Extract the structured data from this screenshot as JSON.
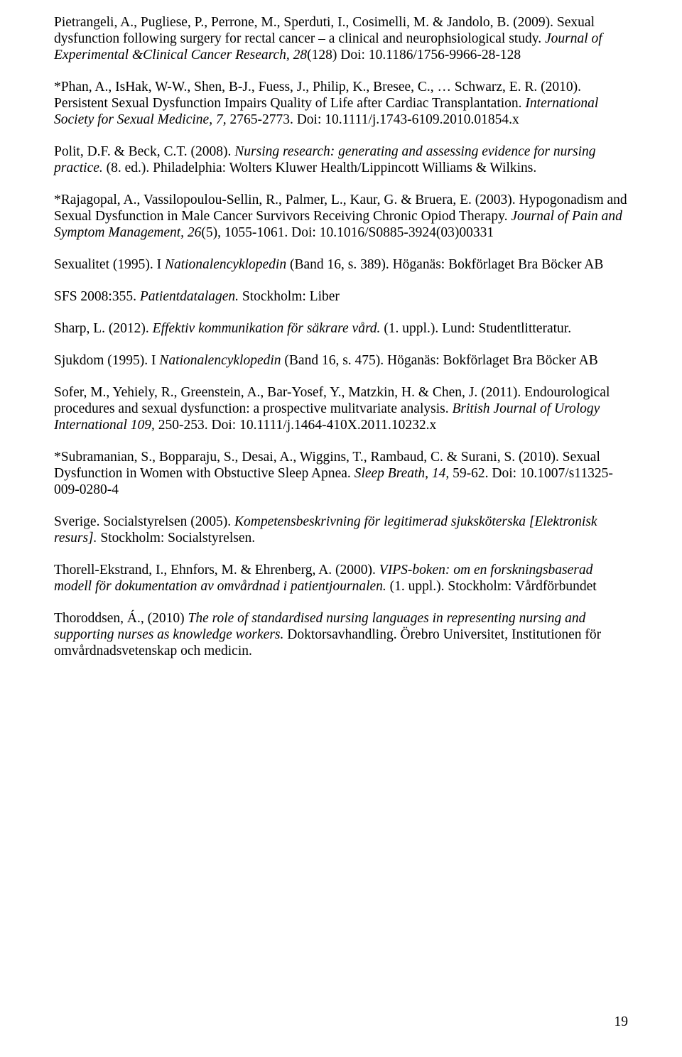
{
  "page_number": "19",
  "refs": [
    {
      "parts": [
        {
          "t": "Pietrangeli, A., Pugliese, P., Perrone, M., Sperduti, I., Cosimelli, M. & Jandolo, B. (2009). Sexual dysfunction following surgery for rectal cancer – a clinical and neurophsiological study. ",
          "i": false
        },
        {
          "t": "Journal of Experimental &Clinical Cancer Research, 28",
          "i": true
        },
        {
          "t": "(128) Doi: 10.1186/1756-9966-28-128",
          "i": false
        }
      ]
    },
    {
      "parts": [
        {
          "t": "*Phan, A., IsHak, W-W., Shen, B-J., Fuess, J., Philip, K., Bresee, C., … Schwarz, E. R. (2010). Persistent Sexual Dysfunction Impairs Quality of Life after Cardiac Transplantation. ",
          "i": false
        },
        {
          "t": "International Society for Sexual Medicine, 7,",
          "i": true
        },
        {
          "t": " 2765-2773. Doi: 10.1111/j.1743-6109.2010.01854.x",
          "i": false
        }
      ]
    },
    {
      "parts": [
        {
          "t": "Polit, D.F. & Beck, C.T. (2008). ",
          "i": false
        },
        {
          "t": "Nursing research: generating and assessing evidence for nursing practice.",
          "i": true
        },
        {
          "t": " (8. ed.). Philadelphia: Wolters Kluwer Health/Lippincott Williams & Wilkins.",
          "i": false
        }
      ]
    },
    {
      "parts": [
        {
          "t": "*Rajagopal, A., Vassilopoulou-Sellin, R., Palmer, L., Kaur, G. & Bruera, E. (2003). Hypogonadism and Sexual Dysfunction in Male Cancer Survivors Receiving Chronic Opiod Therapy. ",
          "i": false
        },
        {
          "t": "Journal of Pain and Symptom Management, 26",
          "i": true
        },
        {
          "t": "(5), 1055-1061. Doi: 10.1016/S0885-3924(03)00331",
          "i": false
        }
      ]
    },
    {
      "parts": [
        {
          "t": "Sexualitet (1995). I ",
          "i": false
        },
        {
          "t": "Nationalencyklopedin",
          "i": true
        },
        {
          "t": " (Band 16, s. 389). Höganäs: Bokförlaget Bra Böcker AB",
          "i": false
        }
      ]
    },
    {
      "parts": [
        {
          "t": "SFS 2008:355. ",
          "i": false
        },
        {
          "t": "Patientdatalagen.",
          "i": true
        },
        {
          "t": " Stockholm: Liber",
          "i": false
        }
      ]
    },
    {
      "parts": [
        {
          "t": "Sharp, L. (2012). ",
          "i": false
        },
        {
          "t": "Effektiv kommunikation för säkrare vård.",
          "i": true
        },
        {
          "t": " (1. uppl.). Lund: Studentlitteratur.",
          "i": false
        }
      ]
    },
    {
      "parts": [
        {
          "t": "Sjukdom (1995). I ",
          "i": false
        },
        {
          "t": "Nationalencyklopedin",
          "i": true
        },
        {
          "t": " (Band 16, s. 475). Höganäs: Bokförlaget Bra Böcker AB",
          "i": false
        }
      ]
    },
    {
      "parts": [
        {
          "t": "Sofer, M., Yehiely, R., Greenstein, A., Bar-Yosef, Y., Matzkin, H. & Chen, J. (2011). Endourological procedures and sexual dysfunction: a prospective mulitvariate analysis. ",
          "i": false
        },
        {
          "t": "British Journal of Urology International 109,",
          "i": true
        },
        {
          "t": " 250-253. Doi: 10.1111/j.1464-410X.2011.10232.x",
          "i": false
        }
      ]
    },
    {
      "parts": [
        {
          "t": "*Subramanian, S., Bopparaju, S., Desai, A., Wiggins, T., Rambaud, C. & Surani, S. (2010). Sexual Dysfunction in Women with Obstuctive Sleep Apnea. ",
          "i": false
        },
        {
          "t": "Sleep Breath, 14,",
          "i": true
        },
        {
          "t": " 59-62. Doi: 10.1007/s11325-009-0280-4",
          "i": false
        }
      ]
    },
    {
      "parts": [
        {
          "t": "Sverige. Socialstyrelsen (2005). ",
          "i": false
        },
        {
          "t": "Kompetensbeskrivning för legitimerad sjuksköterska [Elektronisk resurs].",
          "i": true
        },
        {
          "t": " Stockholm: Socialstyrelsen.",
          "i": false
        }
      ]
    },
    {
      "parts": [
        {
          "t": "Thorell-Ekstrand, I., Ehnfors, M. & Ehrenberg, A. (2000). ",
          "i": false
        },
        {
          "t": "VIPS-boken: om en forskningsbaserad modell för dokumentation av omvårdnad i patientjournalen.",
          "i": true
        },
        {
          "t": " (1. uppl.). Stockholm: Vårdförbundet",
          "i": false
        }
      ]
    },
    {
      "parts": [
        {
          "t": "Thoroddsen, Á., (2010) ",
          "i": false
        },
        {
          "t": "The role of standardised nursing languages in representing nursing and supporting nurses as knowledge workers.",
          "i": true
        },
        {
          "t": " Doktorsavhandling. Örebro Universitet, Institutionen för omvårdnadsvetenskap och medicin.",
          "i": false
        }
      ]
    }
  ]
}
